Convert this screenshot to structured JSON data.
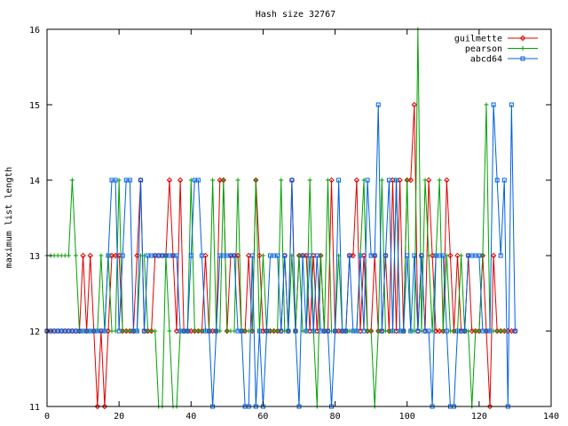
{
  "chart_data": {
    "type": "line",
    "title": "Hash size 32767",
    "xlabel": "",
    "ylabel": "maximum list length",
    "xlim": [
      0,
      140
    ],
    "ylim": [
      11,
      16
    ],
    "x_ticks": [
      0,
      20,
      40,
      60,
      80,
      100,
      120,
      140
    ],
    "y_ticks": [
      11,
      12,
      13,
      14,
      15,
      16
    ],
    "x_tick_labels": [
      "0",
      "20",
      "40",
      "60",
      "80",
      "100",
      "120",
      "140"
    ],
    "y_tick_labels": [
      "11",
      "12",
      "13",
      "14",
      "15",
      "16"
    ],
    "grid": false,
    "legend_position": "top-right",
    "series": [
      {
        "name": "guilmette",
        "color": "#e00000",
        "marker": "diamond",
        "values": [
          12,
          12,
          12,
          12,
          12,
          12,
          12,
          12,
          12,
          12,
          13,
          12,
          13,
          12,
          11,
          12,
          11,
          12,
          13,
          13,
          13,
          12,
          12,
          12,
          12,
          13,
          14,
          12,
          12,
          12,
          13,
          13,
          13,
          13,
          14,
          13,
          12,
          14,
          12,
          12,
          12,
          12,
          12,
          12,
          13,
          12,
          12,
          12,
          14,
          14,
          12,
          13,
          13,
          13,
          12,
          12,
          13,
          12,
          14,
          13,
          12,
          12,
          12,
          12,
          12,
          12,
          13,
          12,
          14,
          12,
          13,
          13,
          13,
          12,
          13,
          12,
          13,
          12,
          12,
          14,
          12,
          12,
          12,
          12,
          13,
          13,
          14,
          12,
          13,
          12,
          12,
          13,
          12,
          12,
          13,
          12,
          14,
          12,
          14,
          12,
          14,
          14,
          15,
          12,
          13,
          12,
          14,
          13,
          12,
          12,
          12,
          14,
          13,
          12,
          13,
          12,
          12,
          13,
          12,
          12,
          12,
          13,
          12,
          11,
          13,
          12,
          12,
          12,
          12,
          12,
          12
        ]
      },
      {
        "name": "pearson",
        "color": "#00a000",
        "marker": "plus",
        "values": [
          13,
          13,
          13,
          13,
          13,
          13,
          13,
          14,
          13,
          12,
          12,
          12,
          12,
          12,
          12,
          13,
          12,
          13,
          12,
          12,
          14,
          12,
          12,
          12,
          12,
          12,
          13,
          13,
          12,
          12,
          12,
          11,
          11,
          13,
          12,
          11,
          11,
          12,
          12,
          12,
          14,
          12,
          12,
          12,
          12,
          12,
          14,
          12,
          12,
          14,
          12,
          12,
          12,
          14,
          12,
          12,
          12,
          12,
          14,
          12,
          13,
          12,
          12,
          12,
          12,
          14,
          12,
          12,
          13,
          12,
          13,
          12,
          12,
          14,
          12,
          11,
          13,
          12,
          14,
          12,
          12,
          13,
          12,
          12,
          12,
          12,
          12,
          13,
          14,
          12,
          12,
          11,
          12,
          14,
          12,
          12,
          12,
          14,
          12,
          12,
          14,
          12,
          12,
          16,
          12,
          14,
          13,
          12,
          13,
          14,
          12,
          13,
          12,
          12,
          12,
          13,
          12,
          12,
          11,
          12,
          12,
          13,
          15,
          12,
          12,
          12,
          12,
          12
        ]
      },
      {
        "name": "abcd64",
        "color": "#0060e0",
        "marker": "square",
        "values": [
          12,
          12,
          12,
          12,
          12,
          12,
          12,
          12,
          12,
          12,
          12,
          12,
          12,
          12,
          12,
          12,
          12,
          13,
          14,
          14,
          12,
          13,
          14,
          14,
          12,
          12,
          14,
          12,
          13,
          13,
          13,
          13,
          13,
          13,
          13,
          13,
          13,
          12,
          12,
          12,
          13,
          14,
          14,
          13,
          12,
          12,
          11,
          12,
          13,
          13,
          13,
          13,
          13,
          12,
          12,
          11,
          11,
          13,
          11,
          12,
          11,
          12,
          13,
          13,
          13,
          12,
          13,
          12,
          14,
          12,
          11,
          13,
          12,
          13,
          12,
          13,
          12,
          12,
          12,
          11,
          12,
          14,
          12,
          12,
          13,
          12,
          12,
          13,
          12,
          14,
          13,
          13,
          15,
          12,
          13,
          14,
          12,
          14,
          12,
          12,
          13,
          12,
          13,
          12,
          13,
          12,
          12,
          11,
          13,
          13,
          13,
          12,
          11,
          11,
          12,
          12,
          12,
          13,
          13,
          13,
          13,
          12,
          12,
          12,
          15,
          14,
          13,
          14,
          11,
          15,
          12
        ]
      }
    ]
  }
}
